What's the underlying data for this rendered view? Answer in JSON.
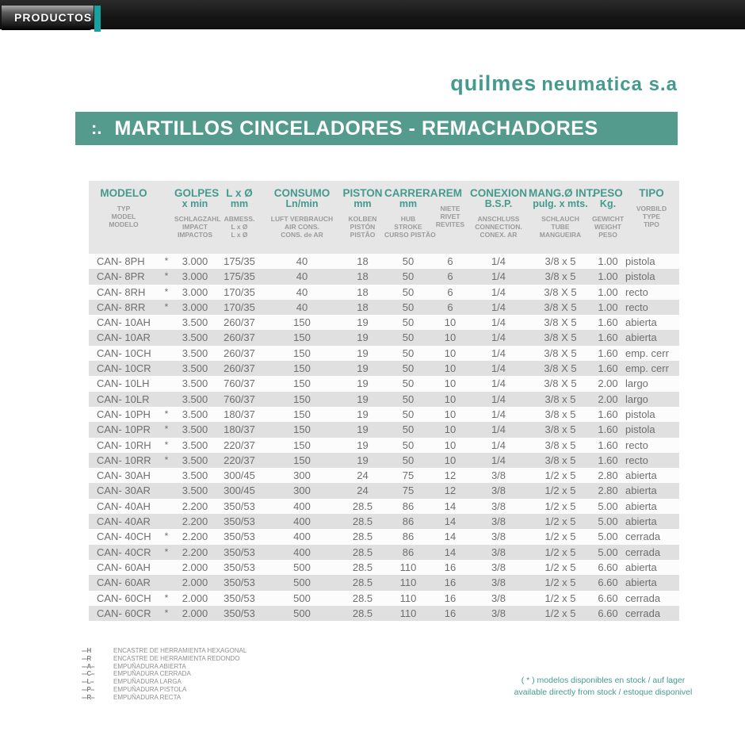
{
  "colors": {
    "accent": "#459a8e",
    "titlebar": "#559b8d",
    "stripe": "#16a2a0",
    "panel": "#e6e6e6",
    "rowalt": "#e0e0e0",
    "textgray": "#6f6f6f",
    "subgray": "#9b9b9b"
  },
  "topbar": {
    "products_label": "PRODUCTOS"
  },
  "logo": {
    "name": "quilmes",
    "suffix": "neumatica s.a"
  },
  "title": {
    "prefix": ":.",
    "text": "MARTILLOS CINCELADORES - REMACHADORES"
  },
  "table": {
    "columns": [
      {
        "id": "modelo",
        "main": [
          "MODELO"
        ],
        "sub": [
          "TYP",
          "MODEL",
          "MODELO"
        ]
      },
      {
        "id": "stock",
        "main": [],
        "sub": []
      },
      {
        "id": "golpes",
        "main": [
          "GOLPES",
          "x min"
        ],
        "sub": [
          "SCHLAGZAHL",
          "IMPACT",
          "IMPACTOS"
        ]
      },
      {
        "id": "lxd",
        "main": [
          "L x Ø",
          "mm"
        ],
        "sub": [
          "ABMESS.",
          "L x Ø",
          "L x Ø"
        ]
      },
      {
        "id": "consumo",
        "main": [
          "CONSUMO",
          "Ln/min"
        ],
        "sub": [
          "LUFT VERBRAUCH",
          "AIR CONS.",
          "CONS. de AR"
        ]
      },
      {
        "id": "piston",
        "main": [
          "PISTON",
          "mm"
        ],
        "sub": [
          "KOLBEN",
          "PISTÓN",
          "PISTÃO"
        ]
      },
      {
        "id": "carrera",
        "main": [
          "CARRERA",
          "mm"
        ],
        "sub": [
          "HUB",
          "STROKE",
          "CURSO PISTÃO"
        ]
      },
      {
        "id": "rem",
        "main": [
          "REM"
        ],
        "sub": [
          "NIETE",
          "RIVET",
          "REVITES"
        ]
      },
      {
        "id": "conexion",
        "main": [
          "CONEXION",
          "B.S.P."
        ],
        "sub": [
          "ANSCHLUSS",
          "CONNECTION.",
          "CONEX. AR"
        ]
      },
      {
        "id": "mang",
        "main": [
          "MANG.Ø INT.",
          "pulg. x mts."
        ],
        "sub": [
          "SCHLAUCH",
          "TUBE",
          "MANGUEIRA"
        ]
      },
      {
        "id": "peso",
        "main": [
          "PESO",
          "Kg."
        ],
        "sub": [
          "GEWICHT",
          "WEIGHT",
          "PESO"
        ]
      },
      {
        "id": "tipo",
        "main": [
          "TIPO"
        ],
        "sub": [
          "VORBILD",
          "TYPE",
          "TIPO"
        ]
      }
    ],
    "rows": [
      [
        "CAN- 8PH",
        "*",
        "3.000",
        "175/35",
        "40",
        "18",
        "50",
        "6",
        "1/4",
        "3/8 x 5",
        "1.00",
        "pistola"
      ],
      [
        "CAN- 8PR",
        "*",
        "3.000",
        "175/35",
        "40",
        "18",
        "50",
        "6",
        "1/4",
        "3/8 x 5",
        "1.00",
        "pistola"
      ],
      [
        "CAN- 8RH",
        "*",
        "3.000",
        "170/35",
        "40",
        "18",
        "50",
        "6",
        "1/4",
        "3/8 X 5",
        "1.00",
        "recto"
      ],
      [
        "CAN- 8RR",
        "*",
        "3.000",
        "170/35",
        "40",
        "18",
        "50",
        "6",
        "1/4",
        "3/8 X 5",
        "1.00",
        "recto"
      ],
      [
        "CAN- 10AH",
        "",
        "3.500",
        "260/37",
        "150",
        "19",
        "50",
        "10",
        "1/4",
        "3/8 X 5",
        "1.60",
        "abierta"
      ],
      [
        "CAN- 10AR",
        "",
        "3.500",
        "260/37",
        "150",
        "19",
        "50",
        "10",
        "1/4",
        "3/8 X 5",
        "1.60",
        "abierta"
      ],
      [
        "CAN- 10CH",
        "",
        "3.500",
        "260/37",
        "150",
        "19",
        "50",
        "10",
        "1/4",
        "3/8 X 5",
        "1.60",
        "emp. cerr"
      ],
      [
        "CAN- 10CR",
        "",
        "3.500",
        "260/37",
        "150",
        "19",
        "50",
        "10",
        "1/4",
        "3/8 X 5",
        "1.60",
        "emp. cerr"
      ],
      [
        "CAN- 10LH",
        "",
        "3.500",
        "760/37",
        "150",
        "19",
        "50",
        "10",
        "1/4",
        "3/8 X 5",
        "2.00",
        "largo"
      ],
      [
        "CAN- 10LR",
        "",
        "3.500",
        "760/37",
        "150",
        "19",
        "50",
        "10",
        "1/4",
        "3/8 x 5",
        "2.00",
        "largo"
      ],
      [
        "CAN- 10PH",
        "*",
        "3.500",
        "180/37",
        "150",
        "19",
        "50",
        "10",
        "1/4",
        "3/8 x 5",
        "1.60",
        "pistola"
      ],
      [
        "CAN- 10PR",
        "*",
        "3.500",
        "180/37",
        "150",
        "19",
        "50",
        "10",
        "1/4",
        "3/8 x 5",
        "1.60",
        "pistola"
      ],
      [
        "CAN- 10RH",
        "*",
        "3.500",
        "220/37",
        "150",
        "19",
        "50",
        "10",
        "1/4",
        "3/8 x 5",
        "1.60",
        "recto"
      ],
      [
        "CAN- 10RR",
        "*",
        "3.500",
        "220/37",
        "150",
        "19",
        "50",
        "10",
        "1/4",
        "3/8 x 5",
        "1.60",
        "recto"
      ],
      [
        "CAN- 30AH",
        "",
        "3.500",
        "300/45",
        "300",
        "24",
        "75",
        "12",
        "3/8",
        "1/2 x 5",
        "2.80",
        "abierta"
      ],
      [
        "CAN- 30AR",
        "",
        "3.500",
        "300/45",
        "300",
        "24",
        "75",
        "12",
        "3/8",
        "1/2 x 5",
        "2.80",
        "abierta"
      ],
      [
        "CAN- 40AH",
        "",
        "2.200",
        "350/53",
        "400",
        "28.5",
        "86",
        "14",
        "3/8",
        "1/2 x 5",
        "5.00",
        "abierta"
      ],
      [
        "CAN- 40AR",
        "",
        "2.200",
        "350/53",
        "400",
        "28.5",
        "86",
        "14",
        "3/8",
        "1/2 x 5",
        "5.00",
        "abierta"
      ],
      [
        "CAN- 40CH",
        "*",
        "2.200",
        "350/53",
        "400",
        "28.5",
        "86",
        "14",
        "3/8",
        "1/2 x 5",
        "5.00",
        "cerrada"
      ],
      [
        "CAN- 40CR",
        "*",
        "2.200",
        "350/53",
        "400",
        "28.5",
        "86",
        "14",
        "3/8",
        "1/2 x 5",
        "5.00",
        "cerrada"
      ],
      [
        "CAN- 60AH",
        "",
        "2.000",
        "350/53",
        "500",
        "28.5",
        "110",
        "16",
        "3/8",
        "1/2 x 5",
        "6.60",
        "abierta"
      ],
      [
        "CAN- 60AR",
        "",
        "2.000",
        "350/53",
        "500",
        "28.5",
        "110",
        "16",
        "3/8",
        "1/2 x 5",
        "6.60",
        "abierta"
      ],
      [
        "CAN- 60CH",
        "*",
        "2.000",
        "350/53",
        "500",
        "28.5",
        "110",
        "16",
        "3/8",
        "1/2 x 5",
        "6.60",
        "cerrada"
      ],
      [
        "CAN- 60CR",
        "*",
        "2.000",
        "350/53",
        "500",
        "28.5",
        "110",
        "16",
        "3/8",
        "1/2 x 5",
        "6.60",
        "cerrada"
      ]
    ]
  },
  "legend": {
    "items": [
      {
        "code": "---H",
        "text": "ENCASTRE DE HERRAMIENTA HEXAGONAL"
      },
      {
        "code": "---R",
        "text": "ENCASTRE DE HERRAMIENTA REDONDO"
      },
      {
        "code": "---A--",
        "text": "EMPUÑADURA ABIERTA"
      },
      {
        "code": "---C--",
        "text": "EMPUÑADURA CERRADA"
      },
      {
        "code": "---L--",
        "text": "EMPUÑADURA LARGA"
      },
      {
        "code": "---P--",
        "text": "EMPUÑADURA PISTOLA"
      },
      {
        "code": "---R--",
        "text": "EMPUÑADURA RECTA"
      }
    ]
  },
  "footnote": {
    "line1": "( * ) modelos disponibles en stock  /  auf lager",
    "line2": "available directly from stock  /  estoque disponivel"
  }
}
